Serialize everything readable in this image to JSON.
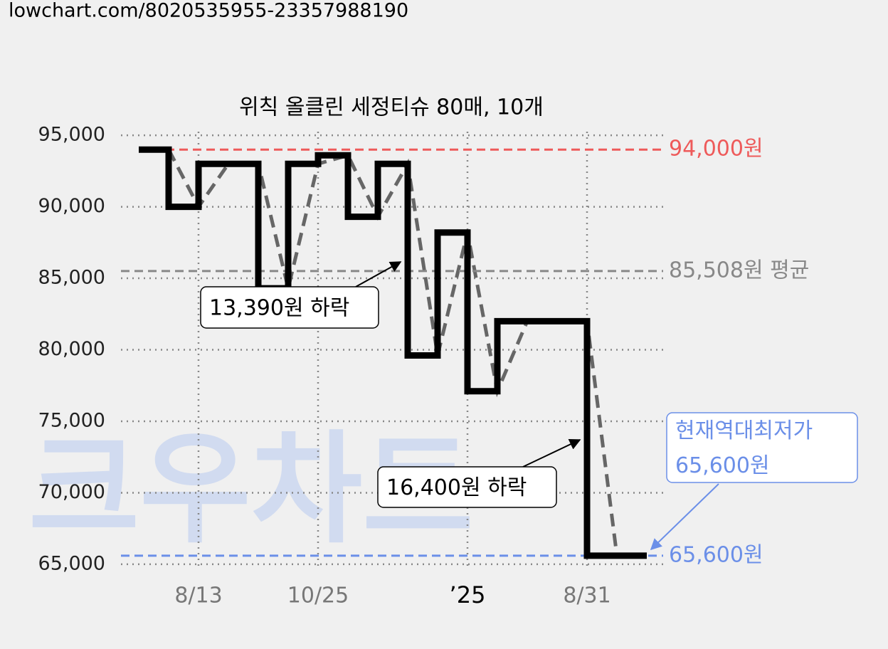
{
  "url": "lowchart.com/8020535955-23357988190",
  "chart_data": {
    "type": "step",
    "title": "위칙 올클린 세정티슈 80매, 10개",
    "watermark": "크우차트",
    "categories": [
      null,
      null,
      "8/13",
      null,
      null,
      null,
      "10/25",
      null,
      null,
      null,
      null,
      "’25",
      null,
      null,
      null,
      "8/31",
      null,
      null
    ],
    "series": [
      {
        "color": "#000000",
        "trend_color": "#666666",
        "values": [
          94000,
          90000,
          93000,
          93000,
          84300,
          93000,
          93600,
          89300,
          93000,
          79600,
          88200,
          77100,
          82000,
          82000,
          82000,
          65600,
          65600,
          65600
        ]
      }
    ],
    "ylim": [
      64000,
      96000
    ],
    "yticks": [
      {
        "value": 65000,
        "label": "65,000"
      },
      {
        "value": 70000,
        "label": "70,000"
      },
      {
        "value": 75000,
        "label": "75,000"
      },
      {
        "value": 80000,
        "label": "80,000"
      },
      {
        "value": 85000,
        "label": "85,000"
      },
      {
        "value": 90000,
        "label": "90,000"
      },
      {
        "value": 95000,
        "label": "95,000"
      }
    ],
    "grid": true,
    "reference_lines": [
      {
        "value": 94000,
        "label": "94,000원",
        "color": "#ee5a5a"
      },
      {
        "value": 85508,
        "label": "85,508원 평균",
        "color": "#888888"
      },
      {
        "value": 65600,
        "label": "65,600원",
        "color": "#6b8fe8"
      }
    ],
    "annotations": [
      {
        "text": [
          "13,390원 하락"
        ]
      },
      {
        "text": [
          "16,400원 하락"
        ]
      },
      {
        "text": [
          "현재역대최저가",
          "65,600원"
        ],
        "color": "#6b8fe8"
      }
    ]
  }
}
